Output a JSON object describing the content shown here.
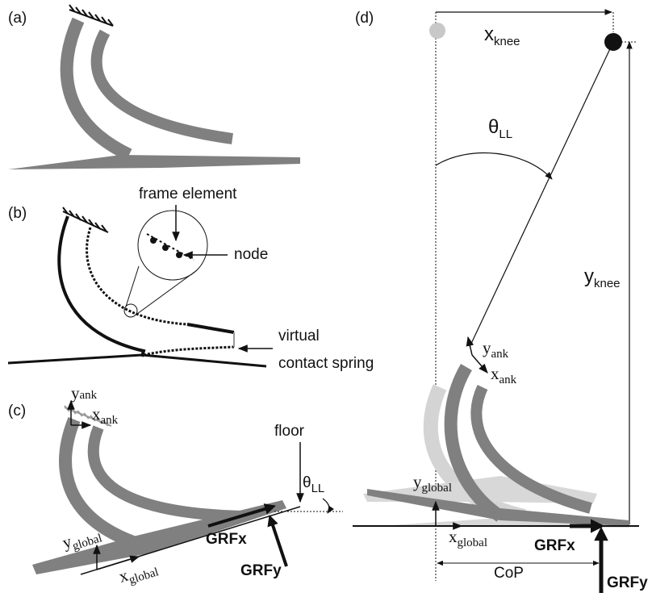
{
  "panels": {
    "a": {
      "label": "(a)"
    },
    "b": {
      "label": "(b)",
      "frame_element": "frame element",
      "node": "node",
      "spring": [
        "virtual",
        "contact spring"
      ]
    },
    "c": {
      "label": "(c)",
      "floor": "floor",
      "theta": {
        "base": "θ",
        "sub": "LL"
      },
      "y_ank": {
        "base": "y",
        "sub": "ank"
      },
      "x_ank": {
        "base": "x",
        "sub": "ank"
      },
      "y_global": {
        "base": "y",
        "sub": "global"
      },
      "x_global": {
        "base": "x",
        "sub": "global"
      },
      "grf_x": "GRFx",
      "grf_y": "GRFy"
    },
    "d": {
      "label": "(d)",
      "x_knee": {
        "base": "x",
        "sub": "knee"
      },
      "y_knee": {
        "base": "y",
        "sub": "knee"
      },
      "theta": {
        "base": "θ",
        "sub": "LL"
      },
      "y_ank": {
        "base": "y",
        "sub": "ank"
      },
      "x_ank": {
        "base": "x",
        "sub": "ank"
      },
      "y_global": {
        "base": "y",
        "sub": "global"
      },
      "x_global": {
        "base": "x",
        "sub": "global"
      },
      "grf_x": "GRFx",
      "grf_y": "GRFy",
      "cop": "CoP"
    }
  }
}
